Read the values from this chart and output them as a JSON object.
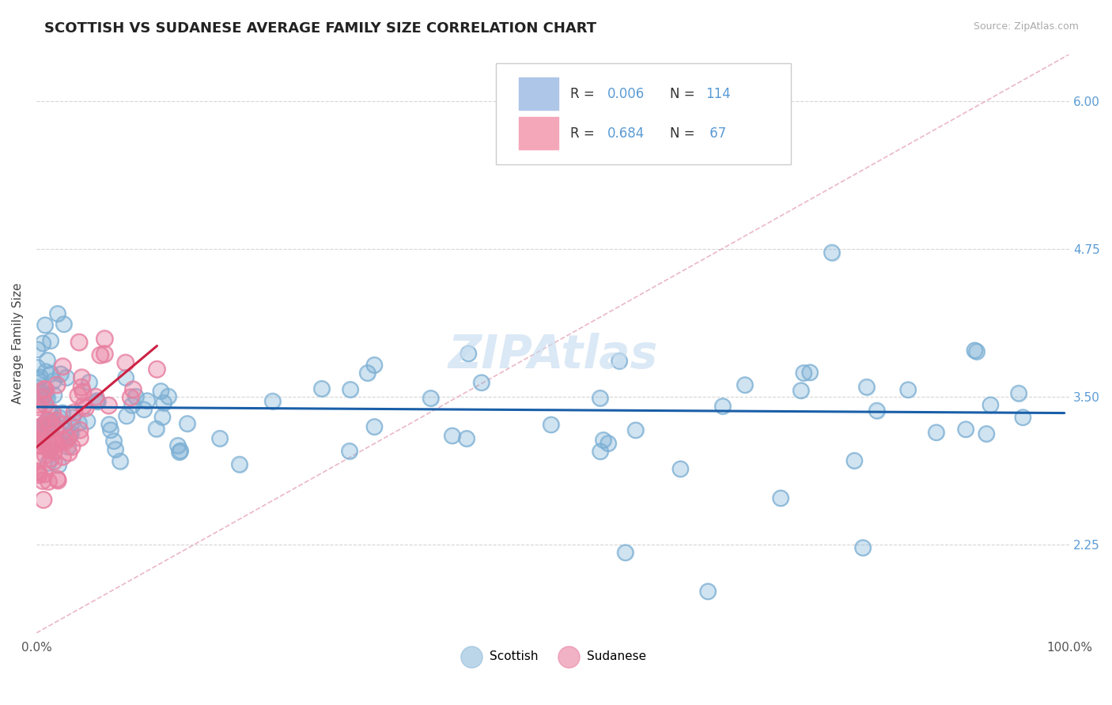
{
  "title": "SCOTTISH VS SUDANESE AVERAGE FAMILY SIZE CORRELATION CHART",
  "source": "Source: ZipAtlas.com",
  "ylabel": "Average Family Size",
  "xlim": [
    0.0,
    100.0
  ],
  "ylim": [
    1.5,
    6.4
  ],
  "yticks": [
    2.25,
    3.5,
    4.75,
    6.0
  ],
  "xtick_positions": [
    0,
    100
  ],
  "xtick_labels": [
    "0.0%",
    "100.0%"
  ],
  "scottish_color": "#7bafd4",
  "sudanese_color": "#e87fa0",
  "ref_line_color": "#e8b0c0",
  "trend_scottish_color": "#1a5fa8",
  "trend_sudanese_color": "#cc2244",
  "background_color": "#ffffff",
  "title_fontsize": 13,
  "tick_label_color_right": "#5b9bd5",
  "watermark_color": "#c8ddf0",
  "legend_box_color": "#aec6e8",
  "legend_box_color2": "#f4a7b9",
  "scottish_seed": 12345,
  "sudanese_seed": 99
}
